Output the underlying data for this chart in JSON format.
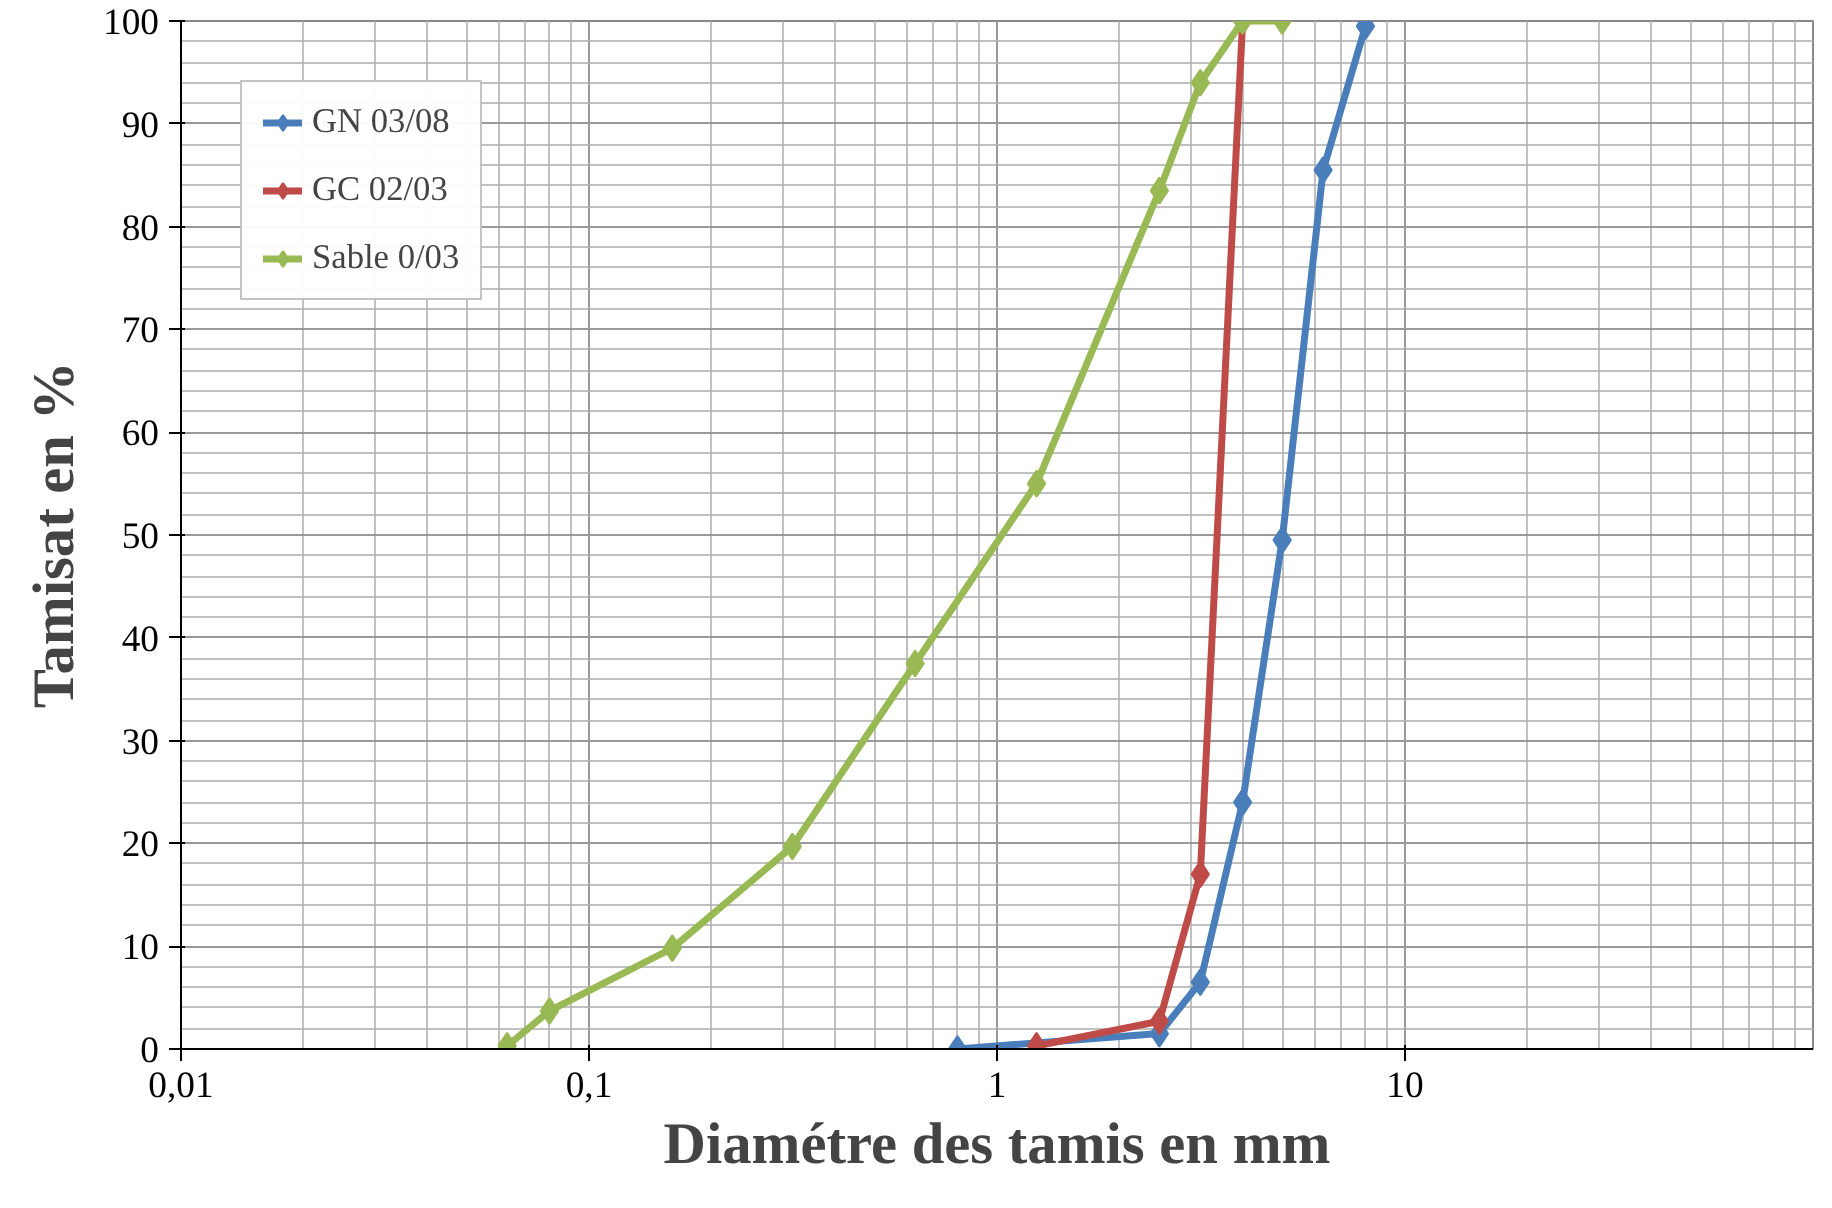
{
  "chart_data": {
    "type": "line",
    "xlabel": "Diamétre des tamis en mm",
    "ylabel": "Tamisat en %",
    "log": "x",
    "xlim": [
      0.01,
      100
    ],
    "xticks": [
      {
        "value": 0.01,
        "label": "0,01"
      },
      {
        "value": 0.1,
        "label": "0,1"
      },
      1,
      10
    ],
    "ylim": [
      0,
      100
    ],
    "yticks": [
      0,
      10,
      20,
      30,
      40,
      50,
      60,
      70,
      80,
      90,
      100
    ],
    "grid": true,
    "legend": "top left",
    "marker": "diamond",
    "line_style": "solid",
    "series": [
      {
        "name": "GN 03/08",
        "color": "#4a7ebb",
        "x": [
          0.8,
          2.5,
          3.15,
          4,
          5,
          6.3,
          8
        ],
        "values": [
          0,
          1.5,
          6.5,
          24,
          49.5,
          85.5,
          99.5
        ]
      },
      {
        "name": "GC 02/03",
        "color": "#be4b48",
        "x": [
          1.25,
          2.5,
          3.15,
          4
        ],
        "values": [
          0.3,
          2.7,
          17,
          100
        ]
      },
      {
        "name": "Sable 0/03",
        "color": "#98b954",
        "x": [
          0.063,
          0.08,
          0.16,
          0.315,
          0.63,
          1.25,
          2.5,
          3.15,
          4,
          5
        ],
        "values": [
          0.3,
          3.7,
          9.8,
          19.7,
          37.5,
          55,
          83.5,
          94,
          100,
          100
        ]
      }
    ]
  }
}
